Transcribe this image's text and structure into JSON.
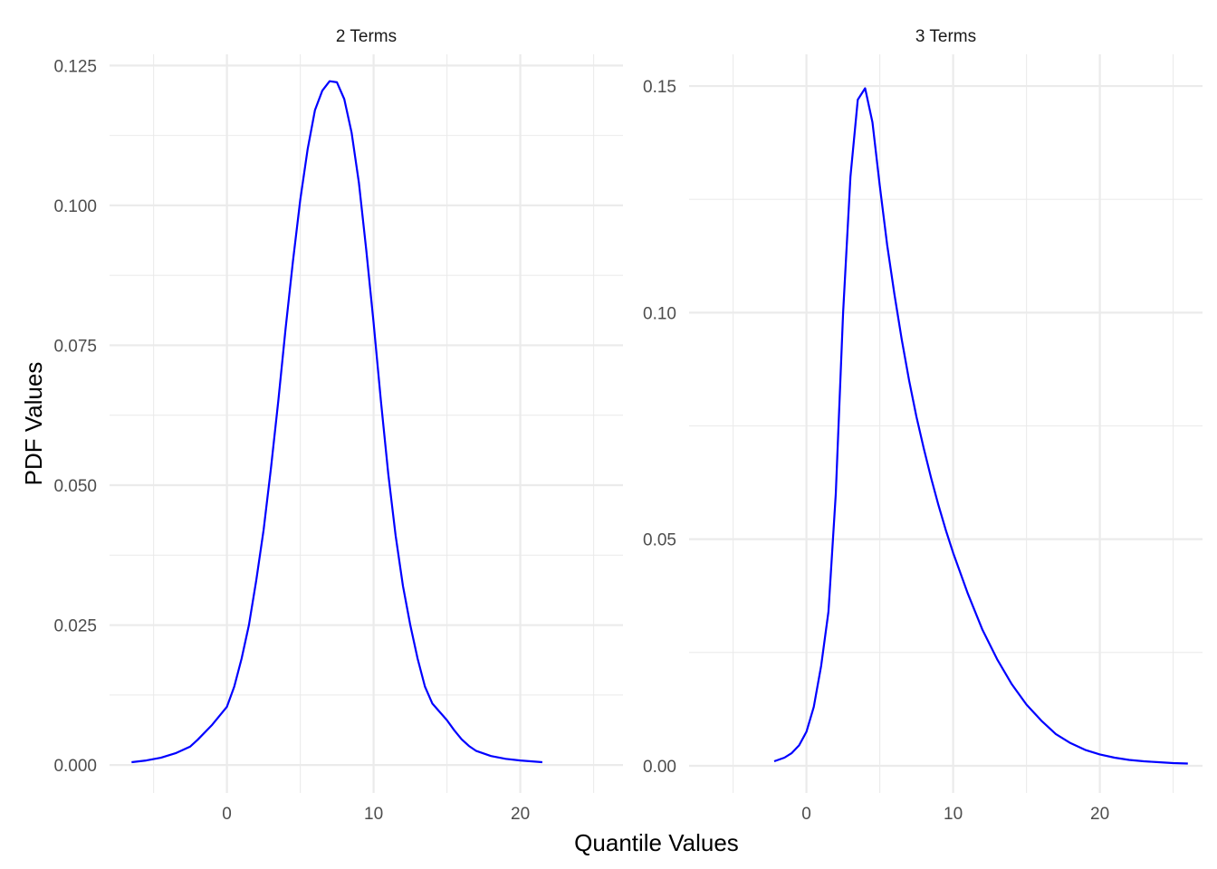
{
  "chart_data": {
    "type": "line",
    "xlabel": "Quantile Values",
    "ylabel": "PDF Values",
    "line_color": "#0000ff",
    "grid": true,
    "facets": [
      {
        "title": "2 Terms",
        "xlim": [
          -8,
          27
        ],
        "x_ticks": [
          0,
          10,
          20
        ],
        "x_tick_labels": [
          "0",
          "10",
          "20"
        ],
        "ylim": [
          -0.005,
          0.127
        ],
        "y_ticks": [
          0,
          0.025,
          0.05,
          0.075,
          0.1,
          0.125
        ],
        "y_tick_labels": [
          "0.000",
          "0.025",
          "0.050",
          "0.075",
          "0.100",
          "0.125"
        ],
        "series": [
          {
            "x": [
              -6.5,
              -5.5,
              -4.5,
              -3.5,
              -2.5,
              -2.0,
              -1.0,
              -0.5,
              0.0,
              0.5,
              1.0,
              1.5,
              2.0,
              2.5,
              3.0,
              3.5,
              4.0,
              4.5,
              5.0,
              5.5,
              6.0,
              6.5,
              7.0,
              7.5,
              8.0,
              8.5,
              9.0,
              9.5,
              10.0,
              10.5,
              11.0,
              11.5,
              12.0,
              12.5,
              13.0,
              13.5,
              14.0,
              14.5,
              15.0,
              15.5,
              16.0,
              16.5,
              17.0,
              18.0,
              19.0,
              20.0,
              21.0,
              21.5
            ],
            "y": [
              0.0005,
              0.0008,
              0.0013,
              0.0021,
              0.0033,
              0.0045,
              0.0072,
              0.0088,
              0.0104,
              0.014,
              0.019,
              0.025,
              0.033,
              0.042,
              0.053,
              0.065,
              0.078,
              0.09,
              0.101,
              0.11,
              0.117,
              0.1205,
              0.1222,
              0.122,
              0.119,
              0.113,
              0.104,
              0.092,
              0.079,
              0.065,
              0.052,
              0.041,
              0.032,
              0.025,
              0.019,
              0.014,
              0.011,
              0.0095,
              0.008,
              0.0062,
              0.0046,
              0.0034,
              0.0025,
              0.0016,
              0.0011,
              0.0008,
              0.0006,
              0.0005
            ]
          }
        ]
      },
      {
        "title": "3 Terms",
        "xlim": [
          -8,
          27
        ],
        "x_ticks": [
          0,
          10,
          20
        ],
        "x_tick_labels": [
          "0",
          "10",
          "20"
        ],
        "ylim": [
          -0.006,
          0.157
        ],
        "y_ticks": [
          0,
          0.05,
          0.1,
          0.15
        ],
        "y_tick_labels": [
          "0.00",
          "0.05",
          "0.10",
          "0.15"
        ],
        "series": [
          {
            "x": [
              -2.2,
              -1.5,
              -1.0,
              -0.5,
              0.0,
              0.5,
              1.0,
              1.5,
              2.0,
              2.5,
              3.0,
              3.5,
              4.0,
              4.5,
              5.0,
              5.5,
              6.0,
              6.5,
              7.0,
              7.5,
              8.0,
              8.5,
              9.0,
              9.5,
              10.0,
              11.0,
              12.0,
              13.0,
              14.0,
              15.0,
              16.0,
              17.0,
              18.0,
              19.0,
              20.0,
              21.0,
              22.0,
              23.0,
              24.0,
              25.0,
              26.0
            ],
            "y": [
              0.001,
              0.0018,
              0.0028,
              0.0045,
              0.0075,
              0.013,
              0.022,
              0.034,
              0.06,
              0.1,
              0.13,
              0.147,
              0.1495,
              0.142,
              0.128,
              0.115,
              0.104,
              0.094,
              0.085,
              0.077,
              0.07,
              0.0635,
              0.0575,
              0.052,
              0.047,
              0.038,
              0.03,
              0.0235,
              0.018,
              0.0135,
              0.01,
              0.007,
              0.005,
              0.0035,
              0.0025,
              0.0018,
              0.0013,
              0.001,
              0.0008,
              0.0006,
              0.0005
            ]
          }
        ]
      }
    ]
  }
}
